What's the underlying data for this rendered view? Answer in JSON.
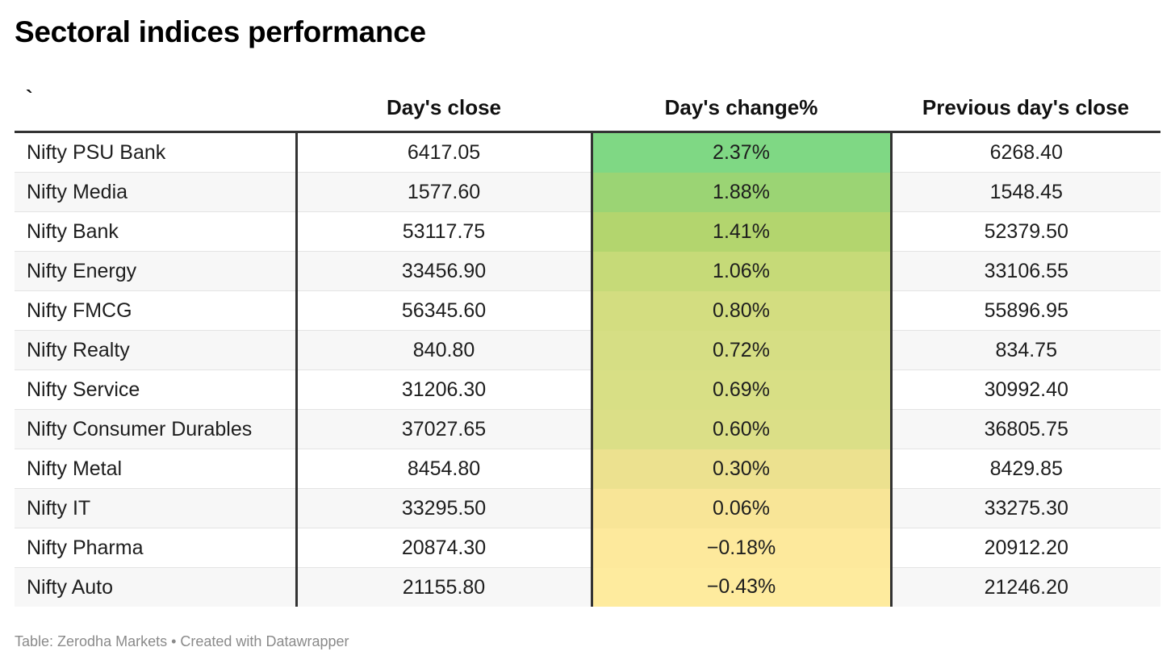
{
  "title": "Sectoral indices performance",
  "footer": "Table: Zerodha Markets • Created with Datawrapper",
  "colors": {
    "header_rule": "#333333",
    "row_alt_bg": "#f7f7f7",
    "heat_high": "#7fd884",
    "heat_low": "#feeb9e",
    "footer_text": "#8a8a8a"
  },
  "chart_data": {
    "type": "table",
    "title": "Sectoral indices performance",
    "columns": [
      "`",
      "Day's close",
      "Day's change%",
      "Previous day's close"
    ],
    "rows": [
      {
        "name": "Nifty PSU Bank",
        "close": "6417.05",
        "change": "2.37%",
        "change_value": 2.37,
        "prev": "6268.40",
        "heat": "#7fd884"
      },
      {
        "name": "Nifty Media",
        "close": "1577.60",
        "change": "1.88%",
        "change_value": 1.88,
        "prev": "1548.45",
        "heat": "#9bd474"
      },
      {
        "name": "Nifty Bank",
        "close": "53117.75",
        "change": "1.41%",
        "change_value": 1.41,
        "prev": "52379.50",
        "heat": "#b3d56e"
      },
      {
        "name": "Nifty Energy",
        "close": "33456.90",
        "change": "1.06%",
        "change_value": 1.06,
        "prev": "33106.55",
        "heat": "#c6da78"
      },
      {
        "name": "Nifty FMCG",
        "close": "56345.60",
        "change": "0.80%",
        "change_value": 0.8,
        "prev": "55896.95",
        "heat": "#d3dd80"
      },
      {
        "name": "Nifty Realty",
        "close": "840.80",
        "change": "0.72%",
        "change_value": 0.72,
        "prev": "834.75",
        "heat": "#d6de84"
      },
      {
        "name": "Nifty Service",
        "close": "31206.30",
        "change": "0.69%",
        "change_value": 0.69,
        "prev": "30992.40",
        "heat": "#d8df85"
      },
      {
        "name": "Nifty Consumer Durables",
        "close": "37027.65",
        "change": "0.60%",
        "change_value": 0.6,
        "prev": "36805.75",
        "heat": "#dbdf87"
      },
      {
        "name": "Nifty Metal",
        "close": "8454.80",
        "change": "0.30%",
        "change_value": 0.3,
        "prev": "8429.85",
        "heat": "#ece18f"
      },
      {
        "name": "Nifty IT",
        "close": "33295.50",
        "change": "0.06%",
        "change_value": 0.06,
        "prev": "33275.30",
        "heat": "#f8e597"
      },
      {
        "name": "Nifty Pharma",
        "close": "20874.30",
        "change": "−0.18%",
        "change_value": -0.18,
        "prev": "20912.20",
        "heat": "#fde99c"
      },
      {
        "name": "Nifty Auto",
        "close": "21155.80",
        "change": "−0.43%",
        "change_value": -0.43,
        "prev": "21246.20",
        "heat": "#feeb9e"
      }
    ]
  }
}
